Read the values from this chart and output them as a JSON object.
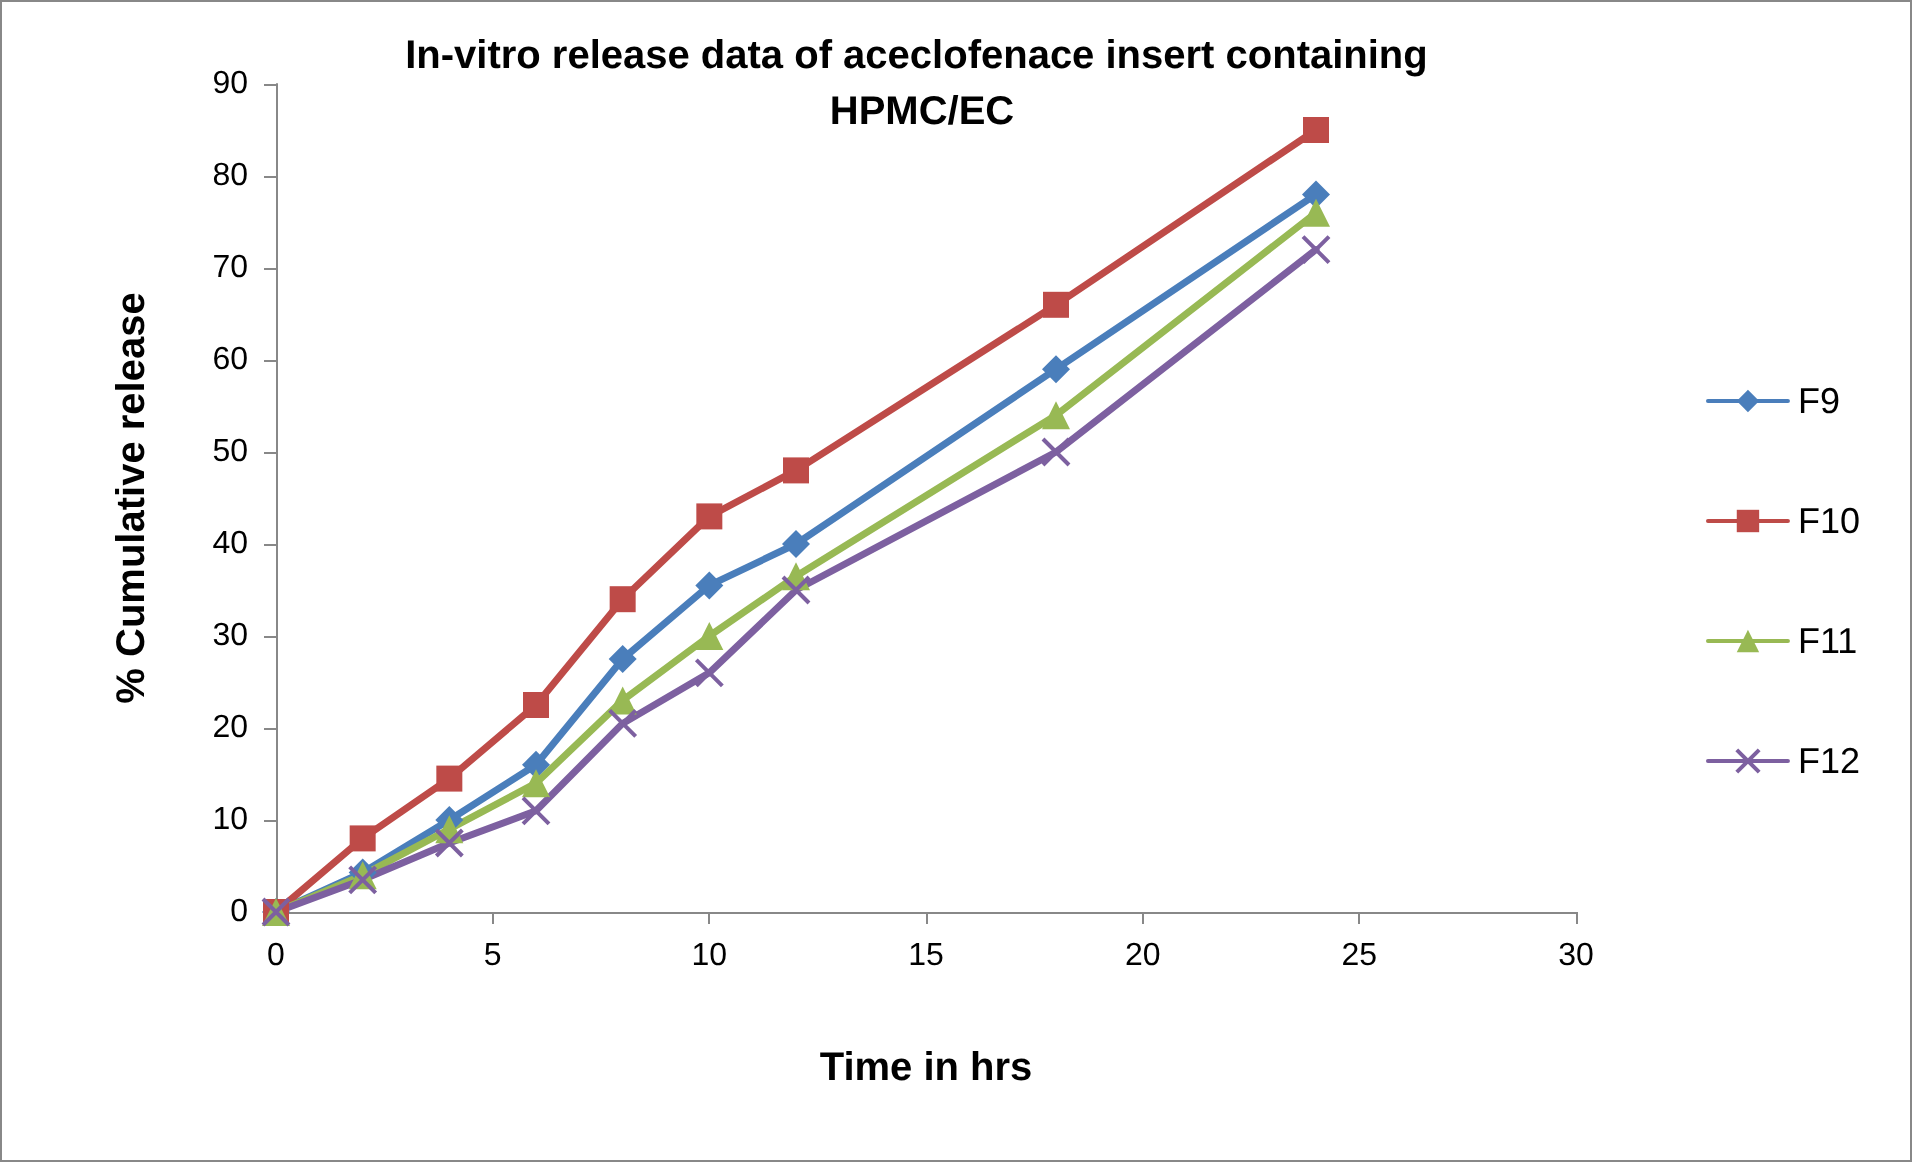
{
  "chart_data": {
    "type": "line",
    "title": "In-vitro release data of aceclofenace insert containing HPMC/EC",
    "xlabel": "Time in hrs",
    "ylabel": "% Cumulative release",
    "x": [
      0,
      2,
      4,
      6,
      8,
      10,
      12,
      18,
      24
    ],
    "xlim": [
      0,
      30
    ],
    "xticks": [
      0,
      5,
      10,
      15,
      20,
      25,
      30
    ],
    "ylim": [
      0,
      90
    ],
    "yticks": [
      0,
      10,
      20,
      30,
      40,
      50,
      60,
      70,
      80,
      90
    ],
    "grid": false,
    "legend": "right",
    "line_style": "solid",
    "series": [
      {
        "name": "F9",
        "color": "#4a7ebb",
        "marker": "diamond",
        "values": [
          0,
          4.3,
          10,
          16,
          27.5,
          35.5,
          40,
          59,
          78
        ]
      },
      {
        "name": "F10",
        "color": "#be4b48",
        "marker": "square",
        "values": [
          0,
          8,
          14.5,
          22.5,
          34,
          43,
          48,
          66,
          85
        ]
      },
      {
        "name": "F11",
        "color": "#98b954",
        "marker": "triangle",
        "values": [
          0,
          4,
          9,
          14,
          23,
          30,
          36.5,
          54,
          76
        ]
      },
      {
        "name": "F12",
        "color": "#7d60a0",
        "marker": "cross",
        "values": [
          0,
          3.5,
          7.5,
          11,
          20.5,
          26,
          35,
          50,
          72
        ]
      }
    ]
  }
}
